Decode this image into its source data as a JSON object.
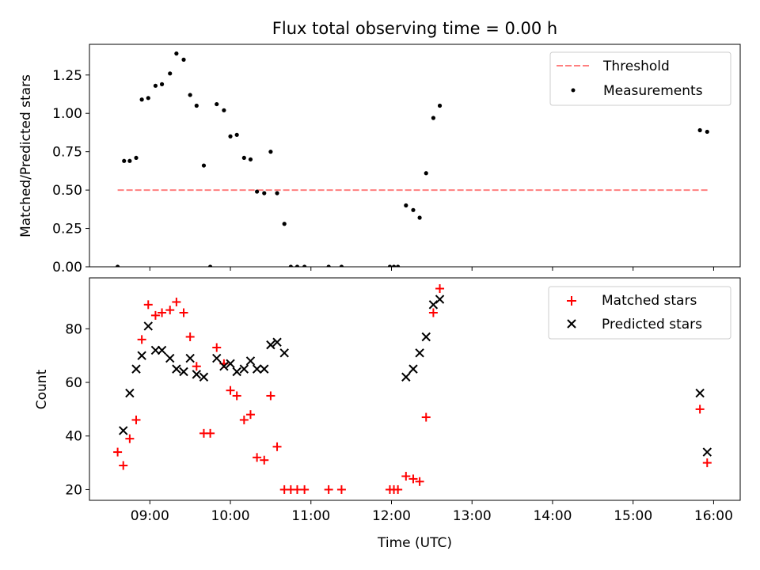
{
  "chart_data": [
    {
      "type": "scatter",
      "title": "Flux total observing time = 0.00 h",
      "xlabel": "",
      "ylabel": "Matched/Predicted stars",
      "xlim": [
        8.25,
        16.33
      ],
      "ylim": [
        0,
        1.45
      ],
      "yticks": [
        0.0,
        0.25,
        0.5,
        0.75,
        1.0,
        1.25
      ],
      "ytick_labels": [
        "0.00",
        "0.25",
        "0.50",
        "0.75",
        "1.00",
        "1.25"
      ],
      "legend": {
        "position": "top-right",
        "entries": [
          "Threshold",
          "Measurements"
        ]
      },
      "threshold": {
        "name": "Threshold",
        "y": 0.5,
        "x_start": 8.6,
        "x_end": 15.93,
        "color": "#ff7f7f"
      },
      "series": [
        {
          "name": "Measurements",
          "color": "#000000",
          "points": [
            [
              8.6,
              0.0
            ],
            [
              8.68,
              0.69
            ],
            [
              8.75,
              0.69
            ],
            [
              8.83,
              0.71
            ],
            [
              8.9,
              1.09
            ],
            [
              8.98,
              1.1
            ],
            [
              9.07,
              1.18
            ],
            [
              9.15,
              1.19
            ],
            [
              9.25,
              1.26
            ],
            [
              9.33,
              1.39
            ],
            [
              9.42,
              1.35
            ],
            [
              9.5,
              1.12
            ],
            [
              9.58,
              1.05
            ],
            [
              9.67,
              0.66
            ],
            [
              9.75,
              0.0
            ],
            [
              9.83,
              1.06
            ],
            [
              9.92,
              1.02
            ],
            [
              10.0,
              0.85
            ],
            [
              10.08,
              0.86
            ],
            [
              10.17,
              0.71
            ],
            [
              10.25,
              0.7
            ],
            [
              10.33,
              0.49
            ],
            [
              10.42,
              0.48
            ],
            [
              10.5,
              0.75
            ],
            [
              10.58,
              0.48
            ],
            [
              10.67,
              0.28
            ],
            [
              10.75,
              0.0
            ],
            [
              10.83,
              0.0
            ],
            [
              10.92,
              0.0
            ],
            [
              11.22,
              0.0
            ],
            [
              11.38,
              0.0
            ],
            [
              11.98,
              0.0
            ],
            [
              12.03,
              0.0
            ],
            [
              12.08,
              0.0
            ],
            [
              12.18,
              0.4
            ],
            [
              12.27,
              0.37
            ],
            [
              12.35,
              0.32
            ],
            [
              12.43,
              0.61
            ],
            [
              12.52,
              0.97
            ],
            [
              12.6,
              1.05
            ],
            [
              15.83,
              0.89
            ],
            [
              15.92,
              0.88
            ]
          ]
        }
      ]
    },
    {
      "type": "scatter",
      "title": "",
      "xlabel": "Time (UTC)",
      "ylabel": "Count",
      "xlim": [
        8.25,
        16.33
      ],
      "ylim": [
        16,
        99
      ],
      "xticks": [
        9,
        10,
        11,
        12,
        13,
        14,
        15,
        16
      ],
      "xtick_labels": [
        "09:00",
        "10:00",
        "11:00",
        "12:00",
        "13:00",
        "14:00",
        "15:00",
        "16:00"
      ],
      "yticks": [
        20,
        40,
        60,
        80
      ],
      "ytick_labels": [
        "20",
        "40",
        "60",
        "80"
      ],
      "legend": {
        "position": "top-right",
        "entries": [
          "Matched stars",
          "Predicted stars"
        ]
      },
      "series": [
        {
          "name": "Matched stars",
          "marker": "plus",
          "color": "#ff0000",
          "points": [
            [
              8.6,
              34
            ],
            [
              8.67,
              29
            ],
            [
              8.75,
              39
            ],
            [
              8.83,
              46
            ],
            [
              8.9,
              76
            ],
            [
              8.98,
              89
            ],
            [
              9.07,
              85
            ],
            [
              9.15,
              86
            ],
            [
              9.25,
              87
            ],
            [
              9.33,
              90
            ],
            [
              9.42,
              86
            ],
            [
              9.5,
              77
            ],
            [
              9.58,
              66
            ],
            [
              9.67,
              41
            ],
            [
              9.75,
              41
            ],
            [
              9.83,
              73
            ],
            [
              9.92,
              67
            ],
            [
              10.0,
              57
            ],
            [
              10.08,
              55
            ],
            [
              10.17,
              46
            ],
            [
              10.25,
              48
            ],
            [
              10.33,
              32
            ],
            [
              10.42,
              31
            ],
            [
              10.5,
              55
            ],
            [
              10.58,
              36
            ],
            [
              10.67,
              20
            ],
            [
              10.75,
              20
            ],
            [
              10.83,
              20
            ],
            [
              10.92,
              20
            ],
            [
              11.22,
              20
            ],
            [
              11.38,
              20
            ],
            [
              11.98,
              20
            ],
            [
              12.03,
              20
            ],
            [
              12.08,
              20
            ],
            [
              12.18,
              25
            ],
            [
              12.27,
              24
            ],
            [
              12.35,
              23
            ],
            [
              12.43,
              47
            ],
            [
              12.52,
              86
            ],
            [
              12.6,
              95
            ],
            [
              15.83,
              50
            ],
            [
              15.92,
              30
            ]
          ]
        },
        {
          "name": "Predicted stars",
          "marker": "x",
          "color": "#000000",
          "points": [
            [
              8.67,
              42
            ],
            [
              8.75,
              56
            ],
            [
              8.83,
              65
            ],
            [
              8.9,
              70
            ],
            [
              8.98,
              81
            ],
            [
              9.07,
              72
            ],
            [
              9.15,
              72
            ],
            [
              9.25,
              69
            ],
            [
              9.33,
              65
            ],
            [
              9.42,
              64
            ],
            [
              9.5,
              69
            ],
            [
              9.58,
              63
            ],
            [
              9.67,
              62
            ],
            [
              9.83,
              69
            ],
            [
              9.92,
              66
            ],
            [
              10.0,
              67
            ],
            [
              10.08,
              64
            ],
            [
              10.17,
              65
            ],
            [
              10.25,
              68
            ],
            [
              10.33,
              65
            ],
            [
              10.42,
              65
            ],
            [
              10.5,
              74
            ],
            [
              10.58,
              75
            ],
            [
              10.67,
              71
            ],
            [
              12.18,
              62
            ],
            [
              12.27,
              65
            ],
            [
              12.35,
              71
            ],
            [
              12.43,
              77
            ],
            [
              12.52,
              89
            ],
            [
              12.6,
              91
            ],
            [
              15.83,
              56
            ],
            [
              15.92,
              34
            ]
          ]
        }
      ]
    }
  ]
}
